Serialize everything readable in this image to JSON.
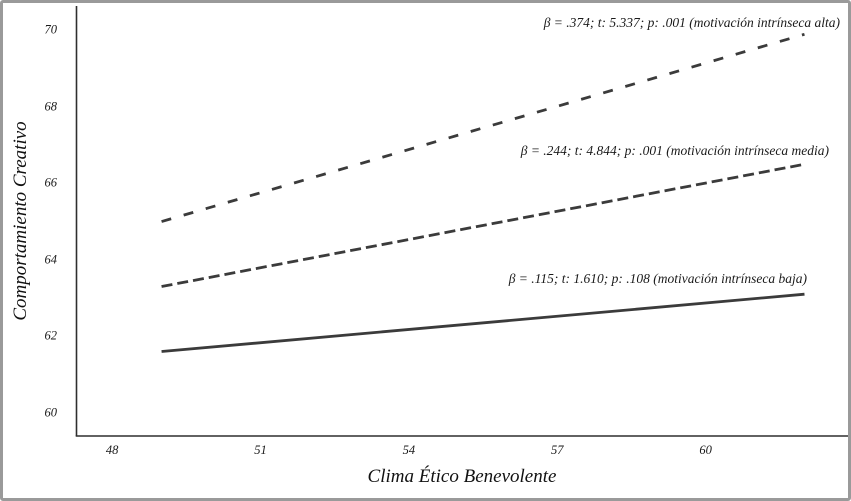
{
  "figure": {
    "background": "#ffffff",
    "border_color": "#9a9a9a",
    "axis_color": "#2f2f2f",
    "line_color": "#3b3b3b",
    "text_color": "#1a1a1a"
  },
  "chart_data": {
    "type": "line",
    "title": "",
    "xlabel": "Clima Ético Benevolente",
    "ylabel": "Comportamiento Creativo",
    "xlim": [
      47.28,
      62.88
    ],
    "ylim": [
      59.39,
      70.64
    ],
    "x_ticks": [
      "48",
      "51",
      "54",
      "57",
      "60"
    ],
    "x_tick_values": [
      48,
      51,
      54,
      57,
      60
    ],
    "y_ticks": [
      "60",
      "62",
      "64",
      "66",
      "68",
      "70"
    ],
    "y_tick_values": [
      60,
      62,
      64,
      66,
      68,
      70
    ],
    "grid": false,
    "legend_position": "inline-annotations",
    "series": [
      {
        "name": "motivación intrínseca alta",
        "label": "β = .374; t: 5.337; p: .001 (motivación intrínseca alta)",
        "line_style": "dashed-sparse",
        "x": [
          49,
          62
        ],
        "y": [
          65.0,
          69.9
        ],
        "beta": 0.374,
        "t": 5.337,
        "p": 0.001
      },
      {
        "name": "motivación intrínseca media",
        "label": "β = .244; t: 4.844; p: .001 (motivación intrínseca media)",
        "line_style": "dashed-dense",
        "x": [
          49,
          62
        ],
        "y": [
          63.3,
          66.5
        ],
        "beta": 0.244,
        "t": 4.844,
        "p": 0.001
      },
      {
        "name": "motivación intrínseca baja",
        "label": "β = .115; t: 1.610; p: .108 (motivación intrínseca baja)",
        "line_style": "solid",
        "x": [
          49,
          62
        ],
        "y": [
          61.6,
          63.1
        ],
        "beta": 0.115,
        "t": 1.61,
        "p": 0.108
      }
    ]
  }
}
